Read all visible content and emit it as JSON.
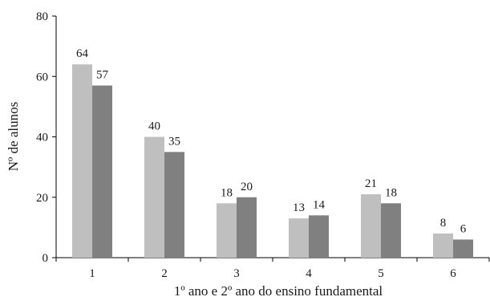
{
  "chart_data": {
    "type": "bar",
    "categories": [
      "1",
      "2",
      "3",
      "4",
      "5",
      "6"
    ],
    "series": [
      {
        "values": [
          64,
          40,
          18,
          13,
          21,
          8
        ],
        "color": "#bfbfbf"
      },
      {
        "values": [
          57,
          35,
          20,
          14,
          18,
          6
        ],
        "color": "#808080"
      }
    ],
    "xlabel": "1º ano e 2º ano do ensino fundamental",
    "ylabel": "Nº de alunos",
    "ylim": [
      0,
      80
    ],
    "yticks": [
      "0",
      "20",
      "40",
      "60",
      "80"
    ],
    "grid": false,
    "data_labels": true
  }
}
